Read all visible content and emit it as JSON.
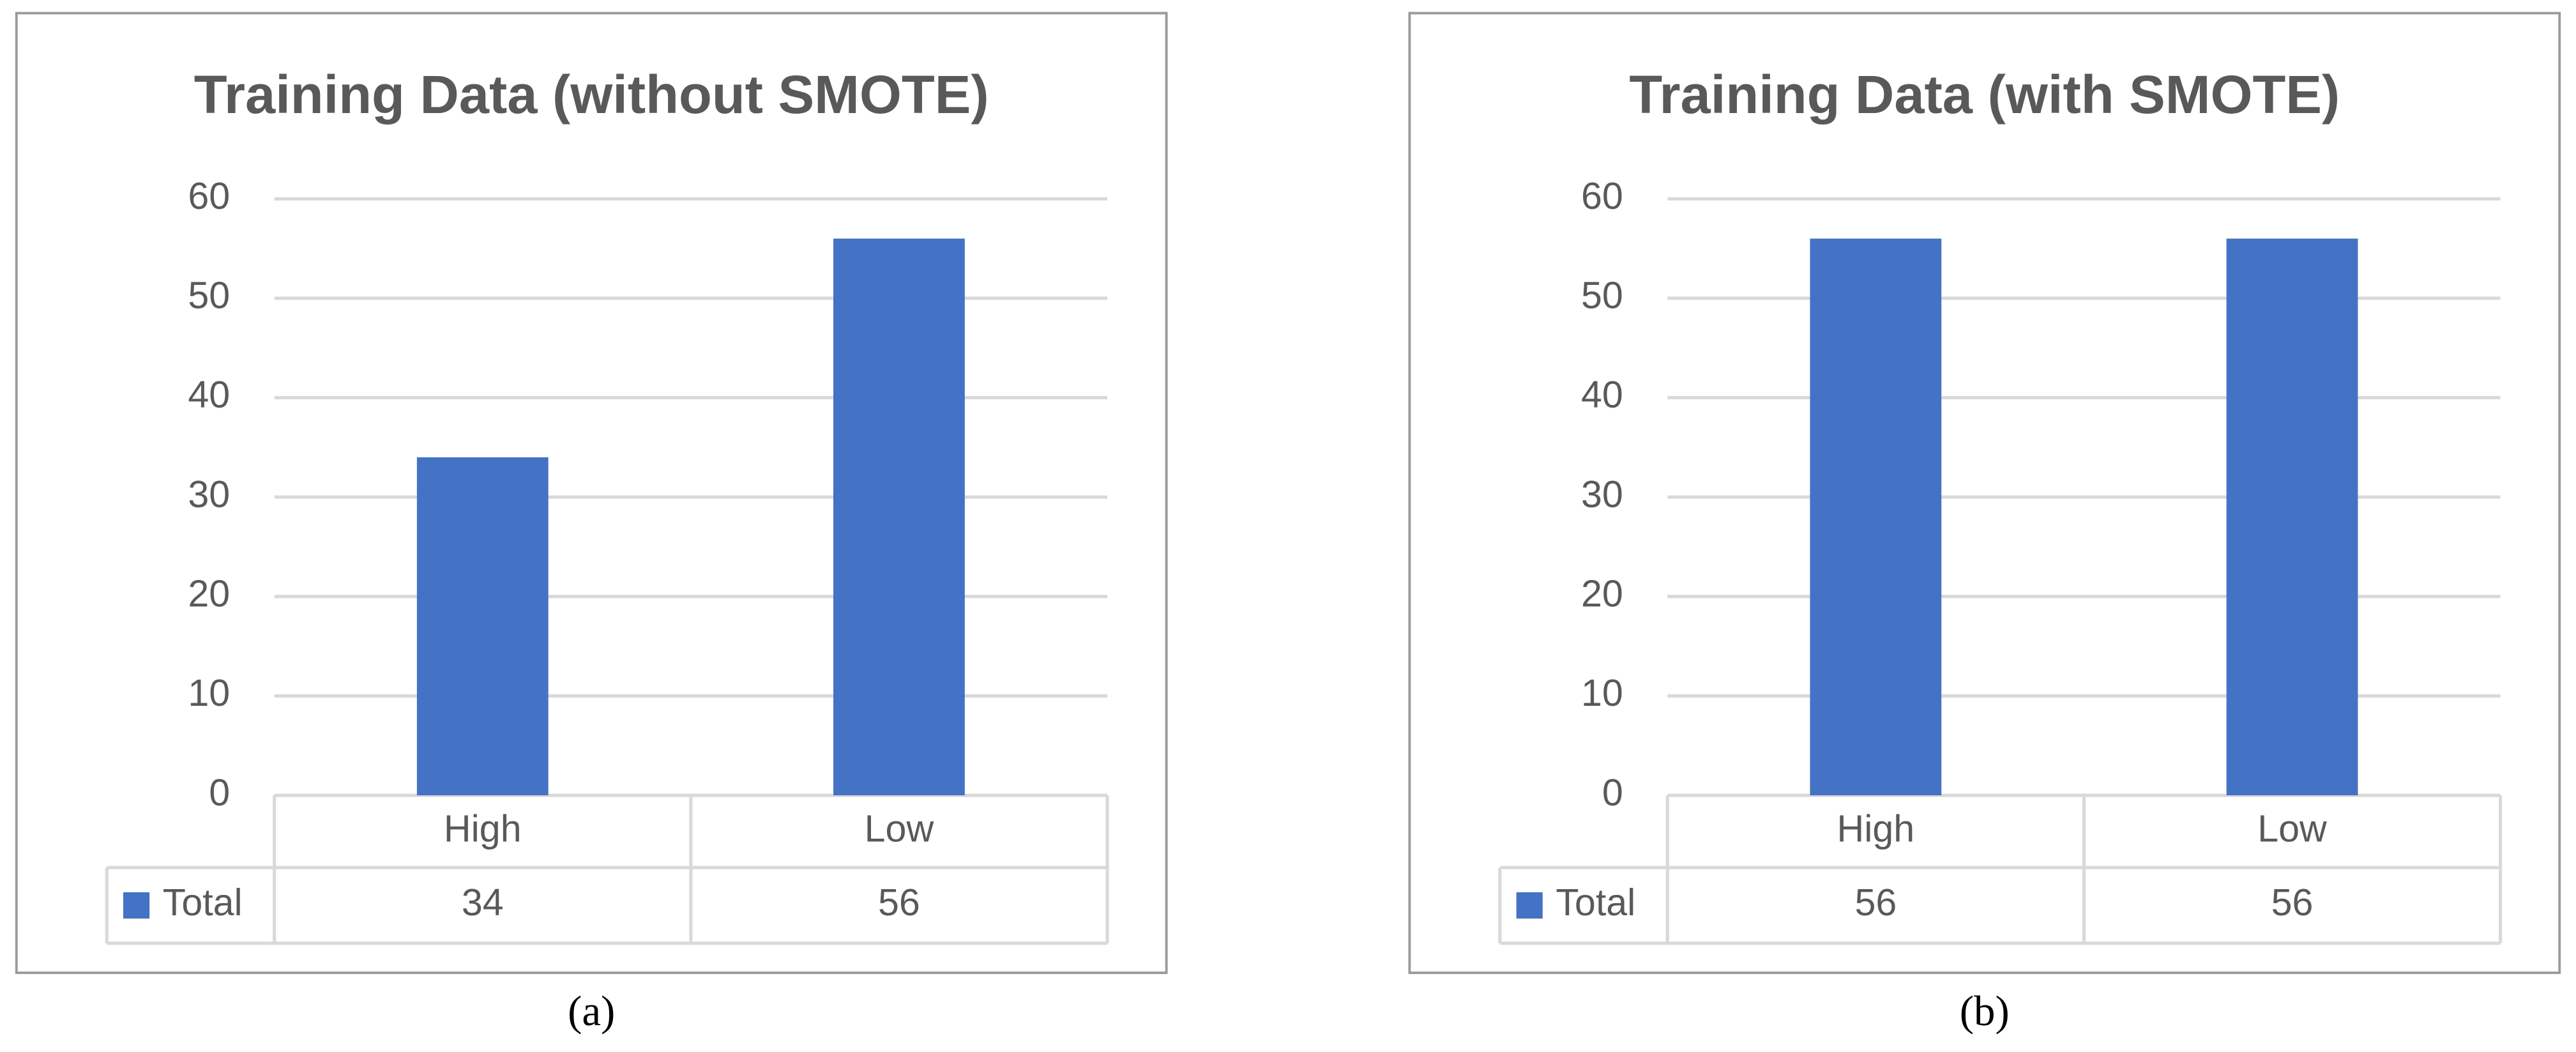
{
  "chart_data": [
    {
      "type": "bar",
      "title": "Training Data (without SMOTE)",
      "caption": "(a)",
      "categories": [
        "High",
        "Low"
      ],
      "series": [
        {
          "name": "Total",
          "color": "#4472c4",
          "values": [
            34,
            56
          ]
        }
      ],
      "ylim": [
        0,
        60
      ],
      "yticks": [
        0,
        10,
        20,
        30,
        40,
        50,
        60
      ],
      "grid": true
    },
    {
      "type": "bar",
      "title": "Training Data (with SMOTE)",
      "caption": "(b)",
      "categories": [
        "High",
        "Low"
      ],
      "series": [
        {
          "name": "Total",
          "color": "#4472c4",
          "values": [
            56,
            56
          ]
        }
      ],
      "ylim": [
        0,
        60
      ],
      "yticks": [
        0,
        10,
        20,
        30,
        40,
        50,
        60
      ],
      "grid": true
    }
  ]
}
